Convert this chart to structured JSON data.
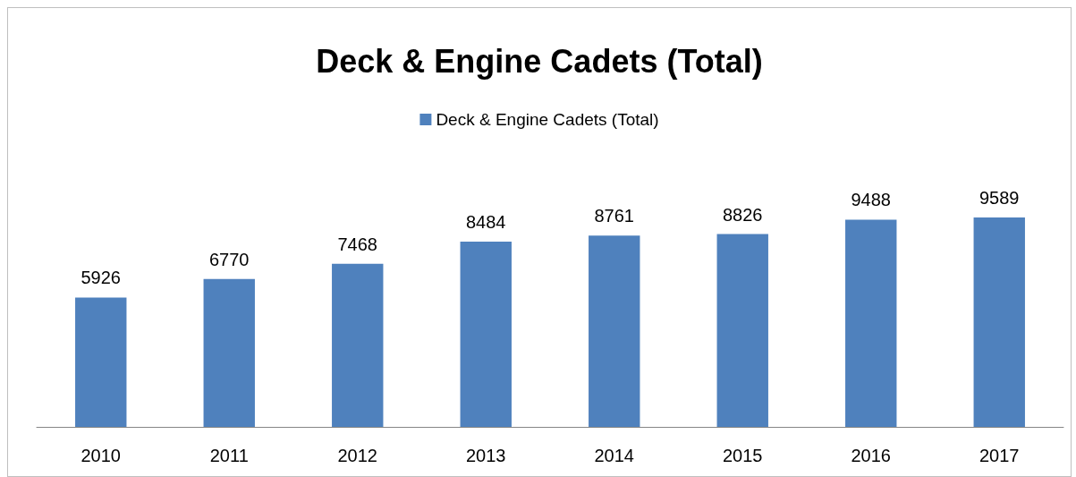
{
  "chart_data": {
    "type": "bar",
    "title": "Deck & Engine Cadets (Total)",
    "categories": [
      "2010",
      "2011",
      "2012",
      "2013",
      "2014",
      "2015",
      "2016",
      "2017"
    ],
    "series": [
      {
        "name": "Deck & Engine Cadets (Total)",
        "color": "#4f81bd",
        "values": [
          5926,
          6770,
          7468,
          8484,
          8761,
          8826,
          9488,
          9589
        ]
      }
    ],
    "data_labels": true,
    "legend": "top",
    "grid": false
  }
}
